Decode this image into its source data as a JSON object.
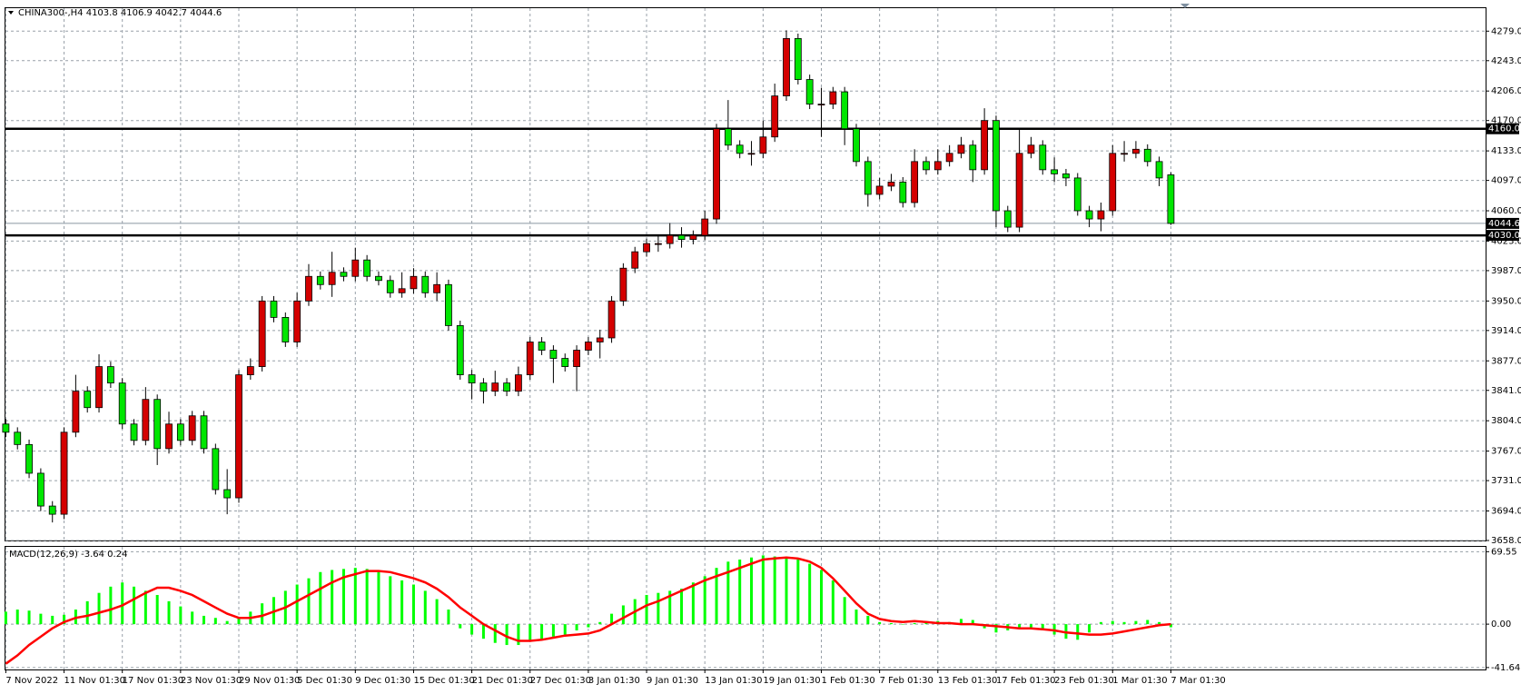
{
  "chart_data": [
    {
      "type": "candlestick",
      "title": "CHINA300-,H4  4103.8 4106.9 4042.7 4044.6",
      "x": [
        "7 Nov 2022",
        null,
        null,
        null,
        null,
        "11 Nov 01:30",
        null,
        null,
        null,
        null,
        "17 Nov 01:30",
        null,
        null,
        null,
        null,
        "23 Nov 01:30",
        null,
        null,
        null,
        null,
        "29 Nov 01:30",
        null,
        null,
        null,
        null,
        "5 Dec 01:30",
        null,
        null,
        null,
        null,
        "9 Dec 01:30",
        null,
        null,
        null,
        null,
        "15 Dec 01:30",
        null,
        null,
        null,
        null,
        "21 Dec 01:30",
        null,
        null,
        null,
        null,
        "27 Dec 01:30",
        null,
        null,
        null,
        null,
        "3 Jan 01:30",
        null,
        null,
        null,
        null,
        "9 Jan 01:30",
        null,
        null,
        null,
        null,
        "13 Jan 01:30",
        null,
        null,
        null,
        null,
        "19 Jan 01:30",
        null,
        null,
        null,
        null,
        "1 Feb 01:30",
        null,
        null,
        null,
        null,
        "7 Feb 01:30",
        null,
        null,
        null,
        null,
        "13 Feb 01:30",
        null,
        null,
        null,
        null,
        "17 Feb 01:30",
        null,
        null,
        null,
        null,
        "23 Feb 01:30",
        null,
        null,
        null,
        null,
        "1 Mar 01:30",
        null,
        null,
        null,
        null,
        "7 Mar 01:30"
      ],
      "ohlc": [
        [
          3800,
          3806,
          3784,
          3790
        ],
        [
          3790,
          3796,
          3769,
          3775
        ],
        [
          3775,
          3781,
          3734,
          3740
        ],
        [
          3740,
          3746,
          3694,
          3700
        ],
        [
          3700,
          3706,
          3680,
          3690
        ],
        [
          3690,
          3796,
          3684,
          3790
        ],
        [
          3790,
          3860,
          3784,
          3840
        ],
        [
          3840,
          3846,
          3814,
          3820
        ],
        [
          3820,
          3885,
          3814,
          3870
        ],
        [
          3870,
          3876,
          3844,
          3850
        ],
        [
          3850,
          3856,
          3794,
          3800
        ],
        [
          3800,
          3806,
          3774,
          3780
        ],
        [
          3780,
          3845,
          3774,
          3830
        ],
        [
          3830,
          3836,
          3750,
          3770
        ],
        [
          3770,
          3815,
          3764,
          3800
        ],
        [
          3800,
          3806,
          3774,
          3780
        ],
        [
          3780,
          3816,
          3774,
          3810
        ],
        [
          3810,
          3816,
          3764,
          3770
        ],
        [
          3770,
          3776,
          3714,
          3720
        ],
        [
          3720,
          3745,
          3690,
          3710
        ],
        [
          3710,
          3866,
          3704,
          3860
        ],
        [
          3860,
          3880,
          3854,
          3870
        ],
        [
          3870,
          3956,
          3864,
          3950
        ],
        [
          3950,
          3956,
          3924,
          3930
        ],
        [
          3930,
          3936,
          3894,
          3900
        ],
        [
          3900,
          3960,
          3894,
          3950
        ],
        [
          3950,
          3995,
          3944,
          3980
        ],
        [
          3980,
          3986,
          3964,
          3970
        ],
        [
          3970,
          4010,
          3955,
          3985
        ],
        [
          3985,
          3991,
          3974,
          3980
        ],
        [
          3980,
          4015,
          3974,
          4000
        ],
        [
          4000,
          4006,
          3974,
          3980
        ],
        [
          3980,
          3986,
          3969,
          3975
        ],
        [
          3975,
          3981,
          3954,
          3960
        ],
        [
          3960,
          3985,
          3954,
          3965
        ],
        [
          3965,
          3990,
          3959,
          3980
        ],
        [
          3980,
          3986,
          3954,
          3960
        ],
        [
          3960,
          3985,
          3950,
          3970
        ],
        [
          3970,
          3976,
          3914,
          3920
        ],
        [
          3920,
          3926,
          3854,
          3860
        ],
        [
          3860,
          3866,
          3830,
          3850
        ],
        [
          3850,
          3856,
          3825,
          3840
        ],
        [
          3840,
          3865,
          3834,
          3850
        ],
        [
          3850,
          3856,
          3834,
          3840
        ],
        [
          3840,
          3870,
          3834,
          3860
        ],
        [
          3860,
          3906,
          3854,
          3900
        ],
        [
          3900,
          3906,
          3884,
          3890
        ],
        [
          3890,
          3896,
          3850,
          3880
        ],
        [
          3880,
          3886,
          3864,
          3870
        ],
        [
          3870,
          3896,
          3840,
          3890
        ],
        [
          3890,
          3906,
          3884,
          3900
        ],
        [
          3900,
          3915,
          3880,
          3905
        ],
        [
          3905,
          3956,
          3899,
          3950
        ],
        [
          3950,
          3996,
          3944,
          3990
        ],
        [
          3990,
          4016,
          3984,
          4010
        ],
        [
          4010,
          4026,
          4004,
          4020
        ],
        [
          4020,
          4030,
          4010,
          4020
        ],
        [
          4020,
          4045,
          4014,
          4030
        ],
        [
          4030,
          4040,
          4015,
          4025
        ],
        [
          4025,
          4036,
          4019,
          4030
        ],
        [
          4030,
          4060,
          4024,
          4050
        ],
        [
          4050,
          4166,
          4044,
          4160
        ],
        [
          4160,
          4195,
          4134,
          4140
        ],
        [
          4140,
          4146,
          4124,
          4130
        ],
        [
          4130,
          4145,
          4115,
          4130
        ],
        [
          4130,
          4170,
          4124,
          4150
        ],
        [
          4150,
          4215,
          4144,
          4200
        ],
        [
          4200,
          4280,
          4194,
          4270
        ],
        [
          4270,
          4276,
          4214,
          4220
        ],
        [
          4220,
          4226,
          4184,
          4190
        ],
        [
          4190,
          4210,
          4150,
          4190
        ],
        [
          4190,
          4211,
          4184,
          4205
        ],
        [
          4205,
          4211,
          4140,
          4160
        ],
        [
          4160,
          4166,
          4114,
          4120
        ],
        [
          4120,
          4126,
          4065,
          4080
        ],
        [
          4080,
          4100,
          4074,
          4090
        ],
        [
          4090,
          4105,
          4084,
          4095
        ],
        [
          4095,
          4101,
          4064,
          4070
        ],
        [
          4070,
          4135,
          4064,
          4120
        ],
        [
          4120,
          4126,
          4104,
          4110
        ],
        [
          4110,
          4135,
          4104,
          4120
        ],
        [
          4120,
          4140,
          4114,
          4130
        ],
        [
          4130,
          4150,
          4124,
          4140
        ],
        [
          4140,
          4146,
          4095,
          4110
        ],
        [
          4110,
          4185,
          4104,
          4170
        ],
        [
          4170,
          4176,
          4040,
          4060
        ],
        [
          4060,
          4066,
          4034,
          4040
        ],
        [
          4040,
          4160,
          4034,
          4130
        ],
        [
          4130,
          4150,
          4124,
          4140
        ],
        [
          4140,
          4146,
          4104,
          4110
        ],
        [
          4110,
          4125,
          4095,
          4105
        ],
        [
          4105,
          4111,
          4090,
          4100
        ],
        [
          4100,
          4106,
          4054,
          4060
        ],
        [
          4060,
          4066,
          4040,
          4050
        ],
        [
          4050,
          4070,
          4035,
          4060
        ],
        [
          4060,
          4140,
          4054,
          4130
        ],
        [
          4130,
          4145,
          4120,
          4130
        ],
        [
          4130,
          4145,
          4124,
          4135
        ],
        [
          4135,
          4141,
          4114,
          4120
        ],
        [
          4120,
          4126,
          4090,
          4100
        ],
        [
          4103.8,
          4106.9,
          4042.7,
          4044.6
        ]
      ],
      "up_color": "#d40000",
      "down_color": "#00e600",
      "ylim": [
        3658,
        4307
      ],
      "yticks": [
        {
          "value": 4279,
          "label": "4279.0"
        },
        {
          "value": 4243,
          "label": "4243.0"
        },
        {
          "value": 4206,
          "label": "4206.0"
        },
        {
          "value": 4170,
          "label": "4170.0"
        },
        {
          "value": 4133,
          "label": "4133.0"
        },
        {
          "value": 4097,
          "label": "4097.0"
        },
        {
          "value": 4060,
          "label": "4060.0"
        },
        {
          "value": 4023,
          "label": "4023.0"
        },
        {
          "value": 3987,
          "label": "3987.0"
        },
        {
          "value": 3950,
          "label": "3950.0"
        },
        {
          "value": 3914,
          "label": "3914.0"
        },
        {
          "value": 3877,
          "label": "3877.0"
        },
        {
          "value": 3841,
          "label": "3841.0"
        },
        {
          "value": 3804,
          "label": "3804.0"
        },
        {
          "value": 3767,
          "label": "3767.0"
        },
        {
          "value": 3731,
          "label": "3731.0"
        },
        {
          "value": 3694,
          "label": "3694.0"
        },
        {
          "value": 3658,
          "label": "3658.0"
        }
      ],
      "levels": [
        {
          "value": 4160,
          "label": "4160.0"
        },
        {
          "value": 4030,
          "label": "4030.0"
        }
      ],
      "bid": {
        "value": 4044.6,
        "label": "4044.6"
      },
      "grid": true
    },
    {
      "type": "macd",
      "title": "MACD(12,26,9) -3.64 0.24",
      "histogram": {
        "color": "#00ff00",
        "values": [
          12,
          14,
          13,
          10,
          8,
          9,
          14,
          22,
          30,
          36,
          40,
          36,
          32,
          28,
          22,
          17,
          12,
          8,
          6,
          3,
          6,
          12,
          20,
          26,
          32,
          38,
          44,
          50,
          52,
          53,
          54,
          53,
          50,
          46,
          42,
          38,
          32,
          24,
          14,
          -4,
          -10,
          -14,
          -18,
          -20,
          -20,
          -16,
          -14,
          -12,
          -10,
          -6,
          -3,
          2,
          10,
          18,
          24,
          28,
          30,
          32,
          34,
          40,
          46,
          54,
          60,
          62,
          64,
          66,
          65,
          64,
          62,
          58,
          52,
          42,
          26,
          14,
          8,
          2,
          1,
          0,
          1,
          2,
          3,
          2,
          5,
          4,
          -4,
          -8,
          -6,
          -4,
          -3,
          -6,
          -10,
          -14,
          -15,
          -8,
          2,
          3,
          2,
          3,
          4,
          2,
          -3
        ]
      },
      "signal": {
        "color": "#ff0000",
        "values": [
          -38,
          -30,
          -20,
          -12,
          -4,
          2,
          6,
          8,
          11,
          14,
          18,
          24,
          30,
          35,
          35,
          32,
          28,
          22,
          16,
          10,
          6,
          6,
          8,
          12,
          16,
          22,
          28,
          34,
          40,
          45,
          48,
          51,
          51,
          50,
          47,
          44,
          40,
          34,
          26,
          16,
          8,
          0,
          -6,
          -12,
          -16,
          -16,
          -15,
          -13,
          -11,
          -10,
          -9,
          -6,
          0,
          6,
          12,
          18,
          22,
          27,
          32,
          37,
          42,
          46,
          50,
          54,
          58,
          62,
          63,
          64,
          63,
          60,
          54,
          44,
          32,
          20,
          10,
          5,
          3,
          2,
          3,
          2,
          1,
          1,
          0,
          0,
          -1,
          -2,
          -3,
          -4,
          -4,
          -5,
          -6,
          -8,
          -9,
          -10,
          -10,
          -9,
          -7,
          -5,
          -3,
          -1,
          0
        ]
      },
      "ylim": [
        -43.5,
        74.2
      ],
      "yticks": [
        69.55,
        {
          "value": 0,
          "label": "0.00"
        },
        -41.64
      ],
      "grid": true
    }
  ]
}
